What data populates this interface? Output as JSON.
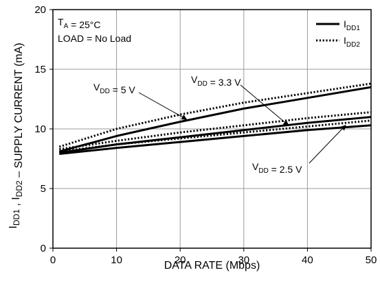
{
  "chart_data": {
    "type": "line",
    "xlabel": "DATA RATE (Mbps)",
    "ylabel": "I_DD1 , I_DD2 – SUPPLY CURRENT (mA)",
    "xlim": [
      0,
      50
    ],
    "ylim": [
      0,
      20
    ],
    "xticks": [
      0,
      10,
      20,
      30,
      40,
      50
    ],
    "yticks": [
      0,
      5,
      10,
      15,
      20
    ],
    "grid": true,
    "legend_position": "top-right",
    "conditions": {
      "ta": "T_A = 25°C",
      "load": "LOAD = No Load"
    },
    "legend": [
      {
        "label": "I_DD1",
        "style": "solid"
      },
      {
        "label": "I_DD2",
        "style": "dotted"
      }
    ],
    "series": [
      {
        "vdd": "5 V",
        "current": "I_DD1",
        "style": "solid",
        "x": [
          1,
          10,
          20,
          30,
          40,
          50
        ],
        "values": [
          8.1,
          9.4,
          10.6,
          11.7,
          12.6,
          13.5
        ]
      },
      {
        "vdd": "5 V",
        "current": "I_DD2",
        "style": "dotted",
        "x": [
          1,
          10,
          20,
          30,
          40,
          50
        ],
        "values": [
          8.5,
          10.0,
          11.2,
          12.2,
          13.0,
          13.8
        ]
      },
      {
        "vdd": "3.3 V",
        "current": "I_DD1",
        "style": "solid",
        "x": [
          1,
          10,
          20,
          30,
          40,
          50
        ],
        "values": [
          8.0,
          8.7,
          9.3,
          9.9,
          10.5,
          11.0
        ]
      },
      {
        "vdd": "3.3 V",
        "current": "I_DD2",
        "style": "dotted",
        "x": [
          1,
          10,
          20,
          30,
          40,
          50
        ],
        "values": [
          8.3,
          9.0,
          9.7,
          10.3,
          10.9,
          11.4
        ]
      },
      {
        "vdd": "2.5 V",
        "current": "I_DD1",
        "style": "solid",
        "x": [
          1,
          10,
          20,
          30,
          40,
          50
        ],
        "values": [
          7.9,
          8.4,
          8.9,
          9.4,
          9.9,
          10.3
        ]
      },
      {
        "vdd": "2.5 V",
        "current": "I_DD2",
        "style": "dotted",
        "x": [
          1,
          10,
          20,
          30,
          40,
          50
        ],
        "values": [
          8.1,
          8.7,
          9.2,
          9.7,
          10.2,
          10.7
        ]
      }
    ],
    "annotations": [
      {
        "text": "V_DD = 5 V",
        "point_x": 21,
        "point_y": 10.8
      },
      {
        "text": "V_DD = 3.3 V",
        "point_x": 37,
        "point_y": 10.3
      },
      {
        "text": "V_DD = 2.5 V",
        "point_x": 46,
        "point_y": 10.3
      }
    ]
  }
}
